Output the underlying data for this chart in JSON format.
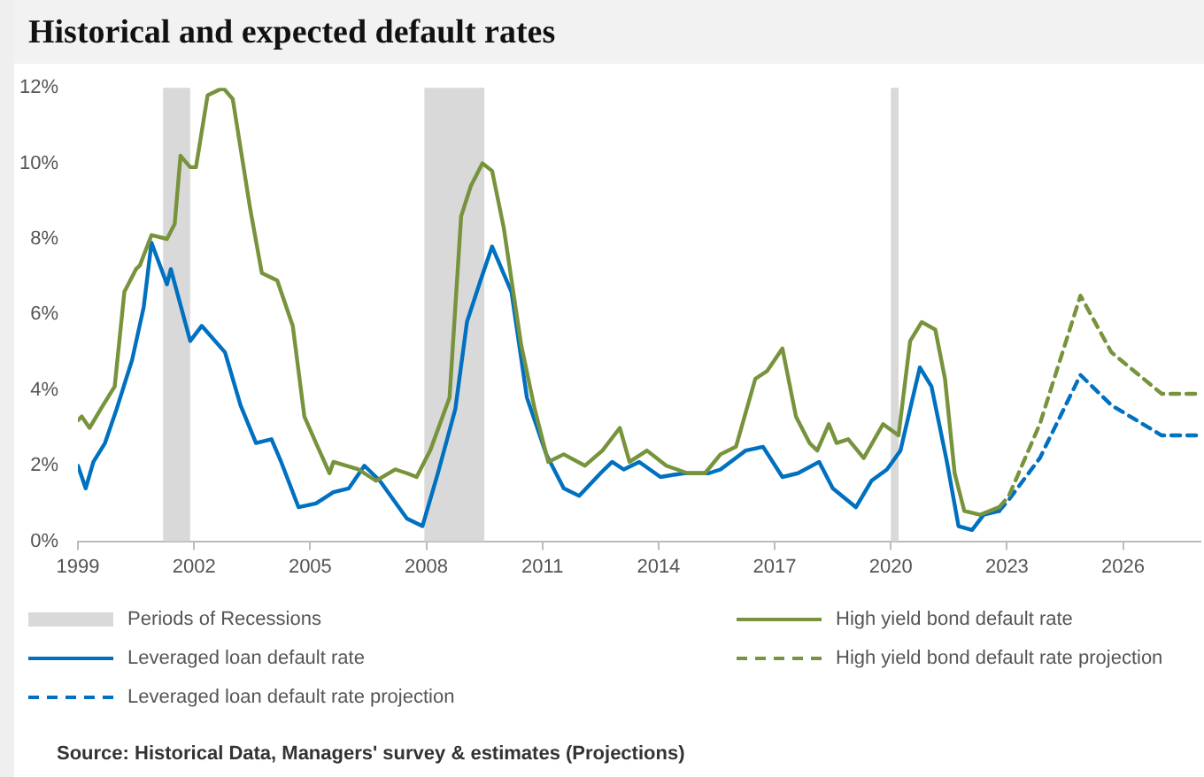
{
  "chart_data": {
    "type": "line",
    "title": "Historical and expected default rates",
    "xlim": [
      1999,
      2028
    ],
    "xticks": [
      1999,
      2002,
      2005,
      2008,
      2011,
      2014,
      2017,
      2020,
      2023,
      2026
    ],
    "ylim": [
      0,
      12
    ],
    "yticks": [
      {
        "value": 0,
        "label": "0%"
      },
      {
        "value": 2,
        "label": "2%"
      },
      {
        "value": 4,
        "label": "4%"
      },
      {
        "value": 6,
        "label": "6%"
      },
      {
        "value": 8,
        "label": "8%"
      },
      {
        "value": 10,
        "label": "10%"
      },
      {
        "value": 12,
        "label": "12%"
      }
    ],
    "grid": false,
    "legend": "bottom",
    "marker": "none",
    "bands": [
      {
        "axis": "x",
        "from": 2001.2,
        "to": 2001.9,
        "label": "Periods of Recessions",
        "color": "#d9d9d9"
      },
      {
        "axis": "x",
        "from": 2007.95,
        "to": 2009.5,
        "color": "#d9d9d9"
      },
      {
        "axis": "x",
        "from": 2020.0,
        "to": 2020.2,
        "color": "#d9d9d9"
      }
    ],
    "series": [
      {
        "name": "High yield bond default rate",
        "color": "#77933c",
        "line_style": "solid",
        "x": [
          1999.0,
          1999.1,
          1999.3,
          1999.65,
          1999.95,
          2000.2,
          2000.5,
          2000.6,
          2000.9,
          2001.3,
          2001.5,
          2001.65,
          2001.9,
          2002.05,
          2002.35,
          2002.75,
          2003.0,
          2003.45,
          2003.75,
          2004.15,
          2004.55,
          2004.85,
          2005.15,
          2005.5,
          2005.6,
          2006.25,
          2006.7,
          2007.2,
          2007.5,
          2007.75,
          2008.1,
          2008.6,
          2008.9,
          2009.15,
          2009.45,
          2009.7,
          2010.0,
          2010.45,
          2010.8,
          2011.15,
          2011.55,
          2012.1,
          2012.55,
          2013.0,
          2013.25,
          2013.7,
          2014.2,
          2014.75,
          2015.2,
          2015.6,
          2016.0,
          2016.5,
          2016.8,
          2017.2,
          2017.55,
          2017.9,
          2018.1,
          2018.4,
          2018.6,
          2018.9,
          2019.3,
          2019.8,
          2020.2,
          2020.5,
          2020.8,
          2021.15,
          2021.4,
          2021.65,
          2021.9,
          2022.3,
          2022.8
        ],
        "values": [
          3.2,
          3.3,
          3.0,
          3.6,
          4.1,
          6.6,
          7.2,
          7.3,
          8.1,
          8.0,
          8.4,
          10.2,
          9.9,
          9.9,
          11.8,
          12.0,
          11.7,
          8.8,
          7.1,
          6.9,
          5.7,
          3.3,
          2.6,
          1.8,
          2.1,
          1.9,
          1.6,
          1.9,
          1.8,
          1.7,
          2.4,
          3.8,
          8.6,
          9.4,
          10.0,
          9.8,
          8.3,
          5.2,
          3.5,
          2.1,
          2.3,
          2.0,
          2.4,
          3.0,
          2.1,
          2.4,
          2.0,
          1.8,
          1.8,
          2.3,
          2.5,
          4.3,
          4.5,
          5.1,
          3.3,
          2.6,
          2.4,
          3.1,
          2.6,
          2.7,
          2.2,
          3.1,
          2.8,
          5.3,
          5.8,
          5.6,
          4.3,
          1.8,
          0.8,
          0.7,
          0.9
        ]
      },
      {
        "name": "Leveraged loan default rate",
        "color": "#0070c0",
        "line_style": "solid",
        "x": [
          1999.0,
          1999.2,
          1999.4,
          1999.7,
          2000.0,
          2000.4,
          2000.7,
          2000.9,
          2001.3,
          2001.4,
          2001.9,
          2002.2,
          2002.8,
          2003.2,
          2003.6,
          2004.0,
          2004.25,
          2004.7,
          2005.15,
          2005.6,
          2006.0,
          2006.4,
          2006.8,
          2007.5,
          2007.9,
          2008.3,
          2008.75,
          2009.05,
          2009.4,
          2009.7,
          2010.2,
          2010.6,
          2011.1,
          2011.55,
          2011.95,
          2012.5,
          2012.8,
          2013.1,
          2013.5,
          2014.05,
          2014.65,
          2015.3,
          2015.6,
          2016.25,
          2016.7,
          2017.2,
          2017.6,
          2018.15,
          2018.5,
          2019.1,
          2019.5,
          2019.9,
          2020.25,
          2020.75,
          2021.05,
          2021.45,
          2021.75,
          2022.1,
          2022.4,
          2022.8
        ],
        "values": [
          2.0,
          1.4,
          2.1,
          2.6,
          3.5,
          4.8,
          6.2,
          7.9,
          6.8,
          7.2,
          5.3,
          5.7,
          5.0,
          3.6,
          2.6,
          2.7,
          2.1,
          0.9,
          1.0,
          1.3,
          1.4,
          2.0,
          1.6,
          0.6,
          0.4,
          1.8,
          3.5,
          5.8,
          6.9,
          7.8,
          6.6,
          3.8,
          2.3,
          1.4,
          1.2,
          1.8,
          2.1,
          1.9,
          2.1,
          1.7,
          1.8,
          1.8,
          1.9,
          2.4,
          2.5,
          1.7,
          1.8,
          2.1,
          1.4,
          0.9,
          1.6,
          1.9,
          2.4,
          4.6,
          4.1,
          2.1,
          0.4,
          0.3,
          0.7,
          0.8
        ]
      },
      {
        "name": "High yield bond default rate projection",
        "color": "#77933c",
        "line_style": "dashed",
        "x": [
          2022.8,
          2023.05,
          2023.85,
          2024.9,
          2025.7,
          2027.0,
          2027.9
        ],
        "values": [
          0.9,
          1.2,
          3.1,
          6.5,
          5.0,
          3.9,
          3.9
        ]
      },
      {
        "name": "Leveraged loan default rate projection",
        "color": "#0070c0",
        "line_style": "dashed",
        "x": [
          2022.8,
          2023.05,
          2023.85,
          2024.9,
          2025.7,
          2027.0,
          2027.9
        ],
        "values": [
          0.8,
          1.1,
          2.2,
          4.4,
          3.6,
          2.8,
          2.8
        ]
      }
    ],
    "annotations": [
      "Source: Historical Data, Managers' survey & estimates (Projections)"
    ]
  }
}
